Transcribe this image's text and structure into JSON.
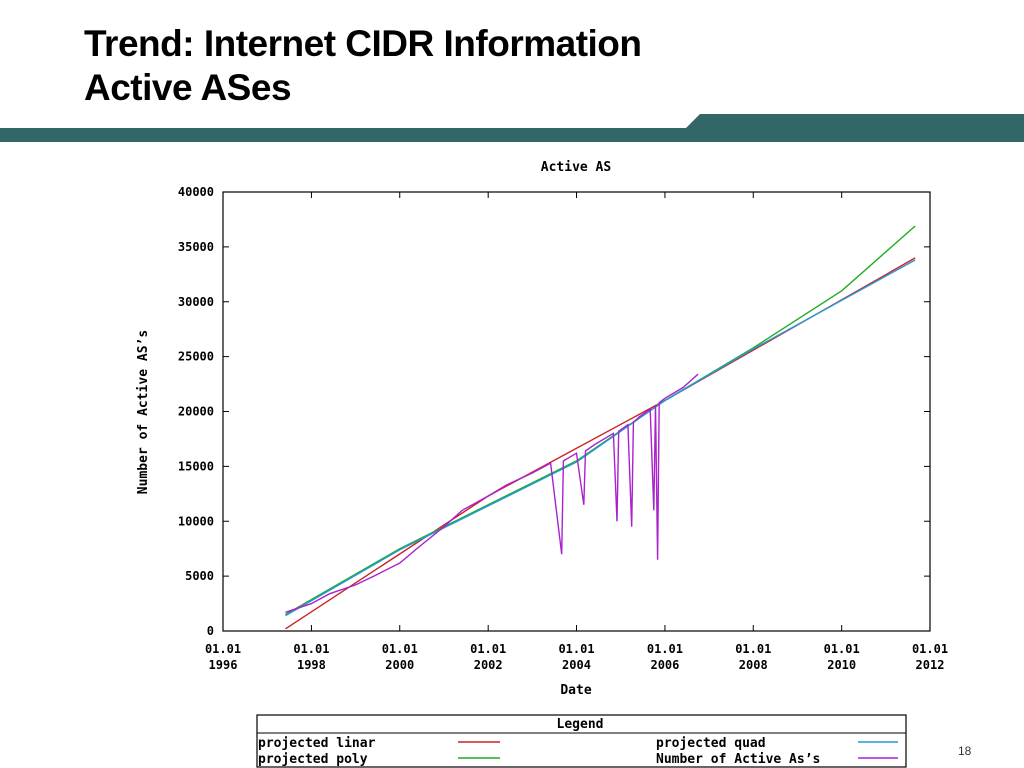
{
  "slide": {
    "title_line1": "Trend: Internet CIDR Information",
    "title_line2": "Active ASes",
    "page_number": "18",
    "banner_color": "#336666"
  },
  "chart_data": {
    "type": "line",
    "title": "Active AS",
    "xlabel": "Date",
    "ylabel": "Number of Active AS’s",
    "xlim": [
      "1996-01-01",
      "2012-01-01"
    ],
    "ylim": [
      0,
      40000
    ],
    "x_ticks": [
      {
        "date": "1996-01-01",
        "label": [
          "01.01",
          "1996"
        ]
      },
      {
        "date": "1998-01-01",
        "label": [
          "01.01",
          "1998"
        ]
      },
      {
        "date": "2000-01-01",
        "label": [
          "01.01",
          "2000"
        ]
      },
      {
        "date": "2002-01-01",
        "label": [
          "01.01",
          "2002"
        ]
      },
      {
        "date": "2004-01-01",
        "label": [
          "01.01",
          "2004"
        ]
      },
      {
        "date": "2006-01-01",
        "label": [
          "01.01",
          "2006"
        ]
      },
      {
        "date": "2008-01-01",
        "label": [
          "01.01",
          "2008"
        ]
      },
      {
        "date": "2010-01-01",
        "label": [
          "01.01",
          "2010"
        ]
      },
      {
        "date": "2012-01-01",
        "label": [
          "01.01",
          "2012"
        ]
      }
    ],
    "y_ticks": [
      {
        "value": 0,
        "label": "0"
      },
      {
        "value": 5000,
        "label": "5000"
      },
      {
        "value": 10000,
        "label": "10000"
      },
      {
        "value": 15000,
        "label": "15000"
      },
      {
        "value": 20000,
        "label": "20000"
      },
      {
        "value": 25000,
        "label": "25000"
      },
      {
        "value": 30000,
        "label": "30000"
      },
      {
        "value": 35000,
        "label": "35000"
      },
      {
        "value": 40000,
        "label": "40000"
      }
    ],
    "grid": false,
    "legend": {
      "title": "Legend",
      "placement": "below"
    },
    "series": [
      {
        "name": "projected linar",
        "color": "#cc2222",
        "points": [
          {
            "x": "1997-06-01",
            "y": 200
          },
          {
            "x": "2002-01-01",
            "y": 12300
          },
          {
            "x": "2006-01-01",
            "y": 21000
          },
          {
            "x": "2011-09-01",
            "y": 34000
          }
        ]
      },
      {
        "name": "projected poly",
        "color": "#22aa22",
        "points": [
          {
            "x": "1997-06-01",
            "y": 1500
          },
          {
            "x": "2000-01-01",
            "y": 7500
          },
          {
            "x": "2004-01-01",
            "y": 15500
          },
          {
            "x": "2006-01-01",
            "y": 21000
          },
          {
            "x": "2008-01-01",
            "y": 25800
          },
          {
            "x": "2010-01-01",
            "y": 31000
          },
          {
            "x": "2011-09-01",
            "y": 36900
          }
        ]
      },
      {
        "name": "projected quad",
        "color": "#2299dd",
        "points": [
          {
            "x": "1997-06-01",
            "y": 1400
          },
          {
            "x": "2000-01-01",
            "y": 7400
          },
          {
            "x": "2004-01-01",
            "y": 15400
          },
          {
            "x": "2006-01-01",
            "y": 21000
          },
          {
            "x": "2008-01-01",
            "y": 25700
          },
          {
            "x": "2011-09-01",
            "y": 33800
          }
        ]
      },
      {
        "name": "Number of Active As’s",
        "color": "#aa22cc",
        "points": [
          {
            "x": "1997-06-01",
            "y": 1700
          },
          {
            "x": "1998-01-01",
            "y": 2500
          },
          {
            "x": "1998-06-01",
            "y": 3400
          },
          {
            "x": "1999-01-01",
            "y": 4200
          },
          {
            "x": "1999-06-01",
            "y": 5000
          },
          {
            "x": "2000-01-01",
            "y": 6200
          },
          {
            "x": "2000-06-01",
            "y": 7600
          },
          {
            "x": "2001-01-01",
            "y": 9500
          },
          {
            "x": "2001-06-01",
            "y": 11000
          },
          {
            "x": "2002-01-01",
            "y": 12300
          },
          {
            "x": "2002-06-01",
            "y": 13300
          },
          {
            "x": "2003-01-01",
            "y": 14400
          },
          {
            "x": "2003-06-01",
            "y": 15300
          },
          {
            "x": "2003-09-01",
            "y": 7000
          },
          {
            "x": "2003-09-15",
            "y": 15500
          },
          {
            "x": "2004-01-01",
            "y": 16200
          },
          {
            "x": "2004-03-01",
            "y": 11500
          },
          {
            "x": "2004-03-15",
            "y": 16400
          },
          {
            "x": "2004-06-01",
            "y": 17000
          },
          {
            "x": "2004-11-01",
            "y": 18000
          },
          {
            "x": "2004-12-01",
            "y": 10000
          },
          {
            "x": "2004-12-15",
            "y": 18200
          },
          {
            "x": "2005-03-01",
            "y": 18800
          },
          {
            "x": "2005-04-01",
            "y": 9500
          },
          {
            "x": "2005-04-15",
            "y": 19000
          },
          {
            "x": "2005-06-01",
            "y": 19500
          },
          {
            "x": "2005-09-01",
            "y": 20200
          },
          {
            "x": "2005-10-01",
            "y": 11000
          },
          {
            "x": "2005-10-15",
            "y": 20600
          },
          {
            "x": "2005-11-01",
            "y": 6500
          },
          {
            "x": "2005-11-15",
            "y": 20800
          },
          {
            "x": "2006-01-01",
            "y": 21200
          },
          {
            "x": "2006-06-01",
            "y": 22200
          },
          {
            "x": "2006-10-01",
            "y": 23400
          }
        ]
      }
    ]
  }
}
